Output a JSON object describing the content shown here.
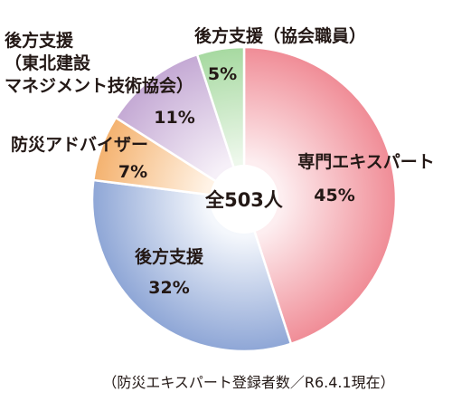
{
  "chart_data": {
    "type": "pie",
    "total_label": "全503人",
    "footnote": "（防災エキスパート登録者数／R6.4.1現在）",
    "slices": [
      {
        "name_lines": [
          "専門エキスパート"
        ],
        "value": 45,
        "value_label": "45%",
        "color_outer": "#f08c96",
        "color_inner": "#fdeef0"
      },
      {
        "name_lines": [
          "後方支援"
        ],
        "value": 32,
        "value_label": "32%",
        "color_outer": "#8ea6d6",
        "color_inner": "#f4f7fc"
      },
      {
        "name_lines": [
          "防災アドバイザー"
        ],
        "value": 7,
        "value_label": "7%",
        "color_outer": "#f4b26f",
        "color_inner": "#fff3e6"
      },
      {
        "name_lines": [
          "後方支援",
          "（東北建設",
          "マネジメント技術協会）"
        ],
        "value": 11,
        "value_label": "11%",
        "color_outer": "#c4a9d4",
        "color_inner": "#f6f0f8"
      },
      {
        "name_lines": [
          "後方支援（協会職員）"
        ],
        "value": 5,
        "value_label": "5%",
        "color_outer": "#a6d9a0",
        "color_inner": "#eef8ec"
      }
    ]
  }
}
